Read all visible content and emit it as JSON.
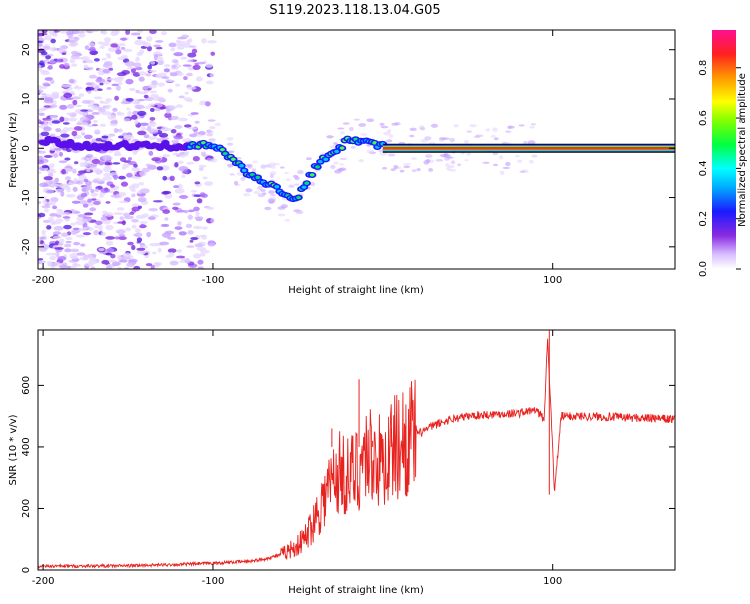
{
  "title": "S119.2023.118.13.04.G05",
  "colors": {
    "signal": "#e8221e",
    "fit_line": "#000000"
  },
  "colorbar": {
    "label": "Normalized spectral amplitude",
    "ticks": [
      "0.0",
      "0.2",
      "0.4",
      "0.6",
      "0.8"
    ],
    "tick_values": [
      0,
      0.2,
      0.4,
      0.6,
      0.8
    ],
    "range": [
      0,
      0.95
    ],
    "colormap": "hsv-like (white/violet to magenta)"
  },
  "chart_data": [
    {
      "type": "heatmap",
      "title": "",
      "xlabel": "Height of straight line (km)",
      "ylabel": "Frequency (Hz)",
      "xlim": [
        -203,
        172
      ],
      "ylim": [
        -24.5,
        24
      ],
      "xticks": [
        -200,
        -100,
        100
      ],
      "xtick_labels": [
        "-200",
        "-100",
        "100"
      ],
      "yticks": [
        -20,
        -10,
        0,
        10,
        20
      ],
      "ytick_labels": [
        "-20",
        "-10",
        "0",
        "10",
        "20"
      ],
      "ridge": {
        "x": [
          -200,
          -180,
          -160,
          -140,
          -120,
          -110,
          -100,
          -90,
          -80,
          -70,
          -60,
          -55,
          -50,
          -45,
          -40,
          -35,
          -30,
          -25,
          -20,
          -15,
          -10,
          -5,
          0,
          10,
          50,
          88,
          90,
          92,
          100,
          172
        ],
        "y": [
          1.5,
          0.5,
          0.5,
          0.5,
          0.5,
          0.5,
          1,
          -2,
          -5,
          -7,
          -8.5,
          -10,
          -10,
          -7,
          -4,
          -2,
          -1,
          0,
          2,
          1.5,
          1.5,
          0.5,
          0.5,
          0,
          0,
          0,
          1,
          0,
          0,
          0
        ]
      },
      "noise_region_x": [
        -203,
        -110
      ],
      "strong_signal_region_x": [
        0,
        172
      ]
    },
    {
      "type": "line",
      "title": "",
      "xlabel": "Height of straight line (km)",
      "ylabel": "SNR (10 * v/v)",
      "xlim": [
        -203,
        172
      ],
      "ylim": [
        0,
        780
      ],
      "xticks": [
        -200,
        -100,
        100
      ],
      "xtick_labels": [
        "-200",
        "-100",
        "100"
      ],
      "yticks": [
        0,
        200,
        400,
        600
      ],
      "ytick_labels": [
        "0",
        "200",
        "400",
        "600"
      ],
      "series": [
        {
          "x": [
            -203,
            -150,
            -120,
            -100,
            -80,
            -70,
            -60,
            -50,
            -45,
            -40,
            -35,
            -30,
            -25,
            -20,
            -15,
            -10,
            -5,
            0,
            5,
            10,
            15,
            20,
            30,
            40,
            50,
            60,
            80,
            90,
            95,
            97,
            99,
            101,
            105,
            120,
            172
          ],
          "y": [
            12,
            14,
            18,
            22,
            28,
            35,
            50,
            80,
            110,
            170,
            230,
            290,
            320,
            300,
            330,
            380,
            370,
            340,
            390,
            410,
            425,
            440,
            470,
            490,
            500,
            505,
            510,
            520,
            490,
            760,
            520,
            250,
            500,
            500,
            490
          ]
        }
      ],
      "spikes": [
        {
          "x": -30,
          "y": 460
        },
        {
          "x": -14,
          "y": 620
        },
        {
          "x": -6,
          "y": 420
        },
        {
          "x": 5,
          "y": 460
        },
        {
          "x": 98,
          "y": 780
        },
        {
          "x": 98,
          "y": 245
        }
      ]
    }
  ]
}
